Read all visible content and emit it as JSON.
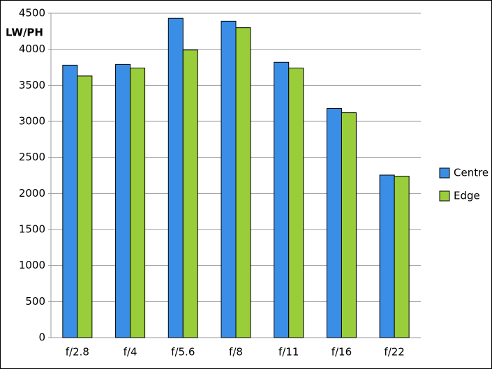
{
  "chart_data": {
    "type": "bar",
    "y_label": "LW/PH",
    "categories": [
      "f/2.8",
      "f/4",
      "f/5.6",
      "f/8",
      "f/11",
      "f/16",
      "f/22"
    ],
    "series": [
      {
        "name": "Centre",
        "color": "#3a8ee6",
        "values": [
          3780,
          3790,
          4430,
          4390,
          3820,
          3180,
          2255
        ]
      },
      {
        "name": "Edge",
        "color": "#9acd3a",
        "values": [
          3630,
          3740,
          3990,
          4300,
          3740,
          3120,
          2240
        ]
      }
    ],
    "ylim": [
      0,
      4500
    ],
    "yticks": [
      0,
      500,
      1000,
      1500,
      2000,
      2500,
      3000,
      3500,
      4000,
      4500
    ],
    "grid": true,
    "legend": "right"
  }
}
